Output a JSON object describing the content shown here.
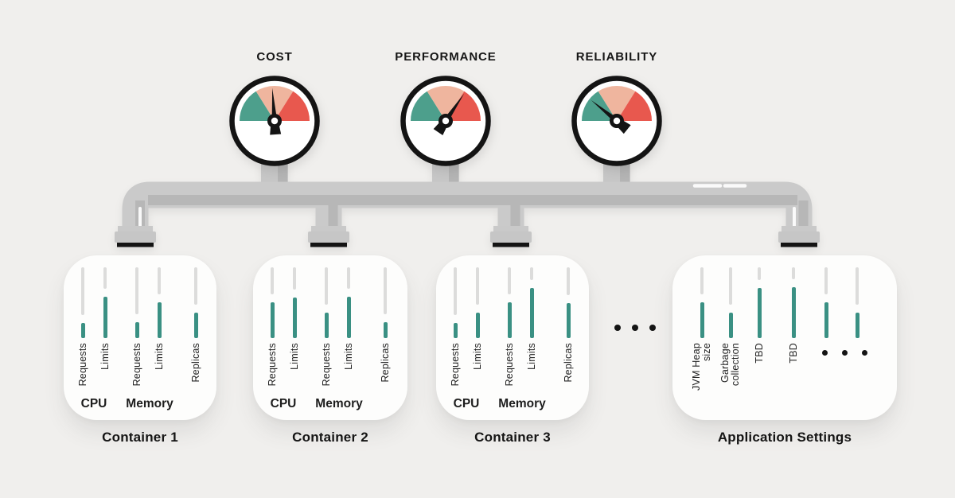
{
  "palette": {
    "background": "#f0efed",
    "gauge_low": "#4d9f8c",
    "gauge_mid": "#efb59e",
    "gauge_high": "#e8584e",
    "gauge_rim": "#141414",
    "pipe": "#cacaca",
    "pipe_shade": "#b7b7b7",
    "slider_fill": "#3a9083",
    "slider_track": "#dcdcdb",
    "text": "#161616"
  },
  "gauges": [
    {
      "label": "COST",
      "needle_angle_deg": -4
    },
    {
      "label": "PERFORMANCE",
      "needle_angle_deg": 34
    },
    {
      "label": "RELIABILITY",
      "needle_angle_deg": -51
    }
  ],
  "panels": [
    {
      "title": "Container 1",
      "group_labels": [
        "CPU",
        "Memory"
      ],
      "sliders": [
        {
          "label": "Requests",
          "value": 0.21
        },
        {
          "label": "Limits",
          "value": 0.58
        },
        {
          "label": "Requests",
          "value": 0.22
        },
        {
          "label": "Limits",
          "value": 0.5
        },
        {
          "label": "Replicas",
          "value": 0.36
        }
      ]
    },
    {
      "title": "Container 2",
      "group_labels": [
        "CPU",
        "Memory"
      ],
      "sliders": [
        {
          "label": "Requests",
          "value": 0.5
        },
        {
          "label": "Limits",
          "value": 0.57
        },
        {
          "label": "Requests",
          "value": 0.36
        },
        {
          "label": "Limits",
          "value": 0.58
        },
        {
          "label": "Replicas",
          "value": 0.22
        }
      ]
    },
    {
      "title": "Container 3",
      "group_labels": [
        "CPU",
        "Memory"
      ],
      "sliders": [
        {
          "label": "Requests",
          "value": 0.21
        },
        {
          "label": "Limits",
          "value": 0.36
        },
        {
          "label": "Requests",
          "value": 0.5
        },
        {
          "label": "Limits",
          "value": 0.7
        },
        {
          "label": "Replicas",
          "value": 0.49
        }
      ]
    },
    {
      "title": "Application Settings",
      "group_labels": [],
      "more_sliders_ellipsis": "•••",
      "sliders": [
        {
          "label": "JVM Heap size",
          "value": 0.5
        },
        {
          "label": "Garbage collection",
          "value": 0.36
        },
        {
          "label": "TBD",
          "value": 0.7
        },
        {
          "label": "TBD",
          "value": 0.71
        },
        {
          "label": "",
          "value": 0.5
        },
        {
          "label": "",
          "value": 0.36
        }
      ]
    }
  ],
  "more_panels_ellipsis": "•••"
}
